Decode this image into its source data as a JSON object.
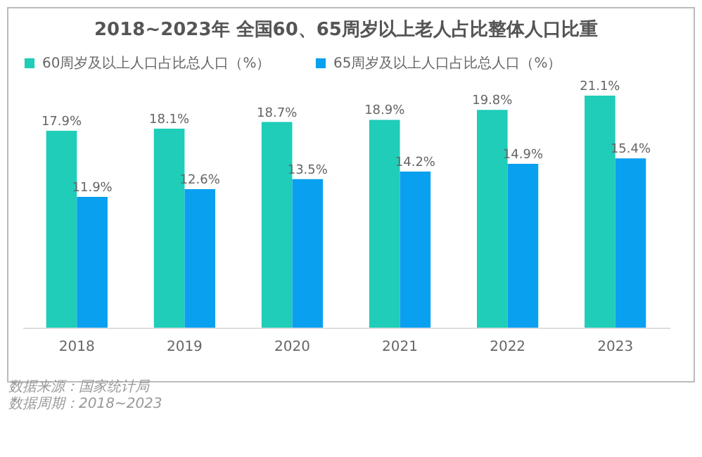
{
  "chart_data": {
    "type": "bar",
    "title": "2018~2023年 全国60、65周岁以上老人占比整体人口比重",
    "categories": [
      "2018",
      "2019",
      "2020",
      "2021",
      "2022",
      "2023"
    ],
    "series": [
      {
        "name": "60周岁及以上人口占比总人口（%）",
        "color": "#1fcdb9",
        "values": [
          17.9,
          18.1,
          18.7,
          18.9,
          19.8,
          21.1
        ],
        "value_labels": [
          "17.9%",
          "18.1%",
          "18.7%",
          "18.9%",
          "19.8%",
          "21.1%"
        ]
      },
      {
        "name": "65周岁及以上人口占比总人口（%）",
        "color": "#0aa0f0",
        "values": [
          11.9,
          12.6,
          13.5,
          14.2,
          14.9,
          15.4
        ],
        "value_labels": [
          "11.9%",
          "12.6%",
          "13.5%",
          "14.2%",
          "14.9%",
          "15.4%"
        ]
      }
    ],
    "legend": "top",
    "grid": false,
    "annotations": [
      "数据来源：国家统计局",
      "数据周期：2018~2023"
    ]
  }
}
